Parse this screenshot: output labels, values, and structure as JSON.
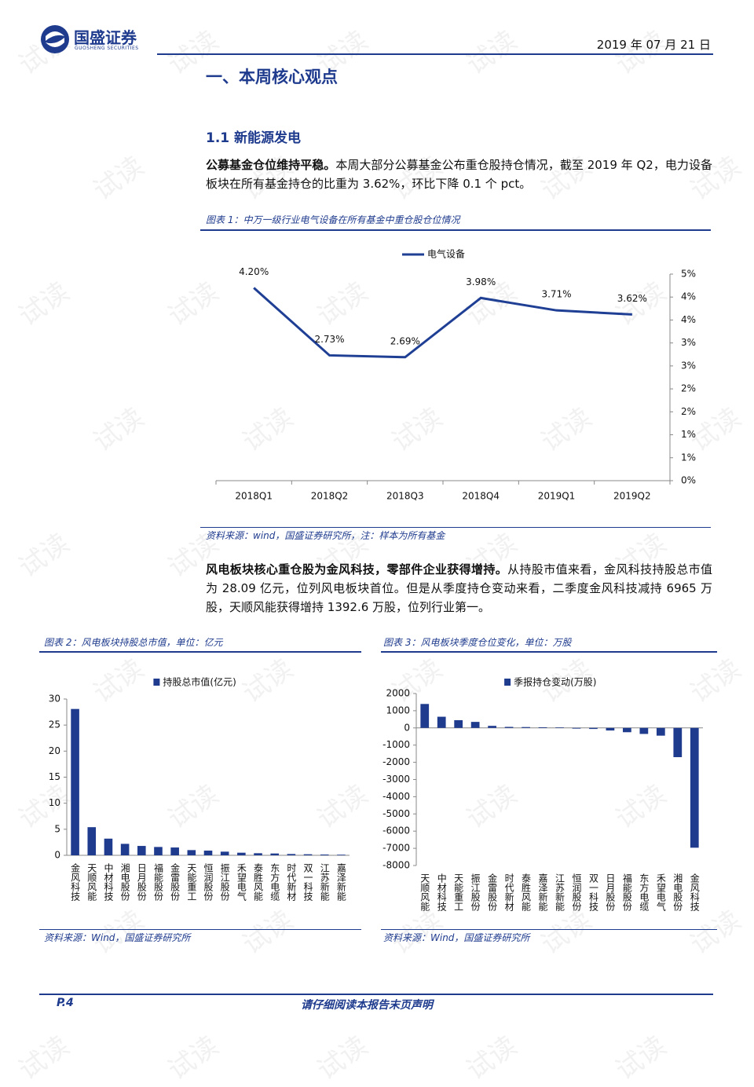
{
  "header": {
    "logo": "国盛证券",
    "logo_sub": "GUOSHENG SECURITIES",
    "date": "2019 年 07 月 21 日"
  },
  "watermark": "试读",
  "section_title": "一、本周核心观点",
  "subsection_title": "1.1 新能源发电",
  "paragraphs": [
    {
      "bold": "公募基金仓位维持平稳。",
      "text": "本周大部分公募基金公布重仓股持仓情况，截至 2019 年 Q2，电力设备板块在所有基金持仓的比重为 3.62%，环比下降 0.1 个 pct。"
    },
    {
      "bold": "风电板块核心重仓股为金风科技，零部件企业获得增持。",
      "text": "从持股市值来看，金风科技持股总市值为 28.09 亿元，位列风电板块首位。但是从季度持仓变动来看，二季度金风科技减持 6965 万股，天顺风能获得增持 1392.6 万股，位列行业第一。"
    }
  ],
  "figures": [
    {
      "caption": "图表 1：中万一级行业电气设备在所有基金中重仓股仓位情况",
      "source": "资料来源：wind，国盛证券研究所，注：样本为所有基金"
    },
    {
      "caption": "图表 2：风电板块持股总市值，单位：亿元",
      "source": "资料来源：Wind，国盛证券研究所"
    },
    {
      "caption": "图表 3：风电板块季度仓位变化，单位：万股",
      "source": "资料来源：Wind，国盛证券研究所"
    }
  ],
  "chart_data": [
    {
      "type": "line",
      "categories": [
        "2018Q1",
        "2018Q2",
        "2018Q3",
        "2018Q4",
        "2019Q1",
        "2019Q2"
      ],
      "series": [
        {
          "name": "电气设备",
          "color": "#1f3f94",
          "values": [
            4.2,
            2.73,
            2.69,
            3.98,
            3.71,
            3.62
          ],
          "value_labels": [
            "4.20%",
            "2.73%",
            "2.69%",
            "3.98%",
            "3.71%",
            "3.62%"
          ]
        }
      ],
      "ylim": [
        0,
        4.5
      ],
      "yticks": [
        {
          "value": 0,
          "label": "0%"
        },
        {
          "value": 0.5,
          "label": "1%"
        },
        {
          "value": 1,
          "label": "1%"
        },
        {
          "value": 1.5,
          "label": "2%"
        },
        {
          "value": 2,
          "label": "2%"
        },
        {
          "value": 2.5,
          "label": "3%"
        },
        {
          "value": 3,
          "label": "3%"
        },
        {
          "value": 3.5,
          "label": "4%"
        },
        {
          "value": 4,
          "label": "4%"
        },
        {
          "value": 4.5,
          "label": "5%"
        }
      ],
      "y_axis_side": "right",
      "grid": false
    },
    {
      "type": "bar",
      "categories": [
        "金风科技",
        "天顺风能",
        "中材科技",
        "湘电股份",
        "日月股份",
        "福能股份",
        "金雷股份",
        "天能重工",
        "恒润股份",
        "振江股份",
        "禾望电气",
        "泰胜风能",
        "东方电缆",
        "时代新材",
        "双一科技",
        "江苏新能",
        "嘉泽新能"
      ],
      "series": [
        {
          "name": "持股总市值(亿元)",
          "color": "#1f3b8e",
          "values": [
            28.09,
            5.4,
            3.2,
            2.2,
            1.8,
            1.6,
            1.5,
            1.0,
            0.9,
            0.7,
            0.5,
            0.4,
            0.35,
            0.25,
            0.2,
            0.15,
            0.12
          ]
        }
      ],
      "ylim": [
        0,
        30
      ],
      "yticks": [
        0,
        5,
        10,
        15,
        20,
        25,
        30
      ],
      "y_axis_side": "left",
      "grid": false
    },
    {
      "type": "bar",
      "categories": [
        "天顺风能",
        "中材科技",
        "天能重工",
        "振江股份",
        "金雷股份",
        "时代新材",
        "泰胜风能",
        "嘉泽新能",
        "江苏新能",
        "恒润股份",
        "双一科技",
        "日月股份",
        "福能股份",
        "东方电缆",
        "禾望电气",
        "湘电股份",
        "金风科技"
      ],
      "series": [
        {
          "name": "季报持仓变动(万股)",
          "color": "#1f3b8e",
          "values": [
            1392.6,
            650,
            450,
            350,
            120,
            60,
            50,
            40,
            30,
            -40,
            -60,
            -150,
            -250,
            -350,
            -450,
            -1700,
            -6965
          ]
        }
      ],
      "ylim": [
        -8000,
        2000
      ],
      "yticks": [
        -8000,
        -7000,
        -6000,
        -5000,
        -4000,
        -3000,
        -2000,
        -1000,
        0,
        1000,
        2000
      ],
      "y_axis_side": "left",
      "grid": false
    }
  ],
  "footer": {
    "page": "P.4",
    "notice": "请仔细阅读本报告末页声明"
  }
}
